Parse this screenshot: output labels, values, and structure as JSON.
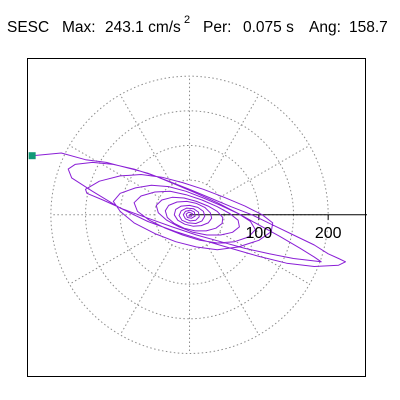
{
  "header": {
    "station": "SESC",
    "max_label": "Max:",
    "max_value": "243.1 cm/s",
    "max_exponent": "2",
    "period_label": "Per:",
    "period_value": "0.075 s",
    "angle_label": "Ang:",
    "angle_value": "158.7"
  },
  "colors": {
    "trace": "#8a1ed6",
    "grid": "#8c8c8c",
    "axis": "#000000",
    "peak_marker": "#119977"
  },
  "chart_data": {
    "type": "scatter",
    "title": "SESC",
    "description_hidden": false,
    "grid": true,
    "radial_rings": [
      50,
      100,
      150,
      200
    ],
    "radial_tick_labels": [
      "100",
      "200"
    ],
    "spoke_angles_deg": [
      0,
      30,
      60,
      90,
      120,
      150,
      180,
      210,
      240,
      270,
      300,
      330
    ],
    "xlim": [
      -233,
      256
    ],
    "ylim": [
      -243,
      232
    ],
    "peak": {
      "x": -227,
      "y": 88,
      "magnitude": 243.1,
      "angle_deg": 158.7
    },
    "series": [
      {
        "points": [
          [
            -227,
            88
          ],
          [
            -185,
            92
          ],
          [
            -150,
            82
          ],
          [
            -120,
            78
          ],
          [
            -90,
            70
          ],
          [
            -60,
            62
          ],
          [
            -30,
            50
          ],
          [
            0,
            38
          ],
          [
            30,
            25
          ],
          [
            60,
            12
          ],
          [
            90,
            0
          ],
          [
            120,
            -15
          ],
          [
            150,
            -30
          ],
          [
            180,
            -45
          ],
          [
            200,
            -58
          ],
          [
            215,
            -65
          ],
          [
            225,
            -70
          ],
          [
            215,
            -75
          ],
          [
            180,
            -77
          ],
          [
            140,
            -72
          ],
          [
            100,
            -62
          ],
          [
            60,
            -50
          ],
          [
            20,
            -38
          ],
          [
            -20,
            -25
          ],
          [
            -60,
            -10
          ],
          [
            -100,
            10
          ],
          [
            -140,
            35
          ],
          [
            -170,
            55
          ],
          [
            -175,
            68
          ],
          [
            -165,
            75
          ],
          [
            -140,
            78
          ],
          [
            -110,
            75
          ],
          [
            -80,
            68
          ],
          [
            -50,
            58
          ],
          [
            -20,
            45
          ],
          [
            10,
            32
          ],
          [
            40,
            18
          ],
          [
            70,
            2
          ],
          [
            100,
            -15
          ],
          [
            130,
            -32
          ],
          [
            160,
            -50
          ],
          [
            180,
            -63
          ],
          [
            190,
            -70
          ],
          [
            150,
            -65
          ],
          [
            115,
            -58
          ],
          [
            80,
            -50
          ],
          [
            45,
            -40
          ],
          [
            10,
            -30
          ],
          [
            -25,
            -18
          ],
          [
            -60,
            -5
          ],
          [
            -95,
            8
          ],
          [
            -125,
            22
          ],
          [
            -148,
            32
          ],
          [
            -150,
            38
          ],
          [
            -130,
            50
          ],
          [
            -100,
            58
          ],
          [
            -70,
            60
          ],
          [
            -40,
            56
          ],
          [
            -10,
            48
          ],
          [
            20,
            38
          ],
          [
            50,
            26
          ],
          [
            80,
            13
          ],
          [
            105,
            0
          ],
          [
            120,
            -12
          ],
          [
            118,
            -25
          ],
          [
            100,
            -38
          ],
          [
            70,
            -48
          ],
          [
            40,
            -52
          ],
          [
            10,
            -48
          ],
          [
            -20,
            -40
          ],
          [
            -50,
            -28
          ],
          [
            -80,
            -12
          ],
          [
            -100,
            5
          ],
          [
            -110,
            20
          ],
          [
            -100,
            32
          ],
          [
            -78,
            40
          ],
          [
            -55,
            44
          ],
          [
            -30,
            42
          ],
          [
            -5,
            35
          ],
          [
            20,
            25
          ],
          [
            45,
            14
          ],
          [
            70,
            2
          ],
          [
            88,
            -10
          ],
          [
            95,
            -22
          ],
          [
            85,
            -33
          ],
          [
            65,
            -40
          ],
          [
            40,
            -42
          ],
          [
            15,
            -38
          ],
          [
            -10,
            -30
          ],
          [
            -35,
            -20
          ],
          [
            -58,
            -8
          ],
          [
            -75,
            5
          ],
          [
            -80,
            18
          ],
          [
            -70,
            28
          ],
          [
            -50,
            34
          ],
          [
            -28,
            35
          ],
          [
            -5,
            30
          ],
          [
            18,
            22
          ],
          [
            40,
            12
          ],
          [
            58,
            2
          ],
          [
            70,
            -8
          ],
          [
            72,
            -18
          ],
          [
            62,
            -26
          ],
          [
            45,
            -30
          ],
          [
            25,
            -30
          ],
          [
            5,
            -26
          ],
          [
            -15,
            -18
          ],
          [
            -33,
            -8
          ],
          [
            -45,
            3
          ],
          [
            -48,
            14
          ],
          [
            -40,
            22
          ],
          [
            -25,
            26
          ],
          [
            -8,
            25
          ],
          [
            10,
            20
          ],
          [
            27,
            13
          ],
          [
            40,
            5
          ],
          [
            48,
            -4
          ],
          [
            47,
            -13
          ],
          [
            38,
            -20
          ],
          [
            24,
            -24
          ],
          [
            8,
            -24
          ],
          [
            -8,
            -20
          ],
          [
            -22,
            -13
          ],
          [
            -32,
            -4
          ],
          [
            -35,
            6
          ],
          [
            -30,
            14
          ],
          [
            -18,
            19
          ],
          [
            -4,
            20
          ],
          [
            10,
            17
          ],
          [
            22,
            11
          ],
          [
            30,
            3
          ],
          [
            32,
            -5
          ],
          [
            27,
            -12
          ],
          [
            17,
            -16
          ],
          [
            5,
            -17
          ],
          [
            -7,
            -14
          ],
          [
            -17,
            -8
          ],
          [
            -22,
            0
          ],
          [
            -20,
            8
          ],
          [
            -12,
            13
          ],
          [
            0,
            14
          ],
          [
            12,
            11
          ],
          [
            20,
            5
          ],
          [
            22,
            -2
          ],
          [
            18,
            -9
          ],
          [
            9,
            -13
          ],
          [
            -2,
            -12
          ],
          [
            -11,
            -8
          ],
          [
            -15,
            -1
          ],
          [
            -12,
            6
          ],
          [
            -4,
            10
          ],
          [
            6,
            9
          ],
          [
            13,
            4
          ],
          [
            14,
            -3
          ],
          [
            9,
            -8
          ],
          [
            1,
            -9
          ],
          [
            -6,
            -6
          ],
          [
            -9,
            0
          ],
          [
            -6,
            5
          ],
          [
            1,
            7
          ],
          [
            7,
            4
          ],
          [
            8,
            -2
          ],
          [
            3,
            -5
          ],
          [
            -3,
            -4
          ],
          [
            -5,
            1
          ],
          [
            -1,
            4
          ],
          [
            4,
            2
          ],
          [
            3,
            -2
          ],
          [
            -1,
            -2
          ],
          [
            0,
            0
          ]
        ]
      }
    ]
  }
}
